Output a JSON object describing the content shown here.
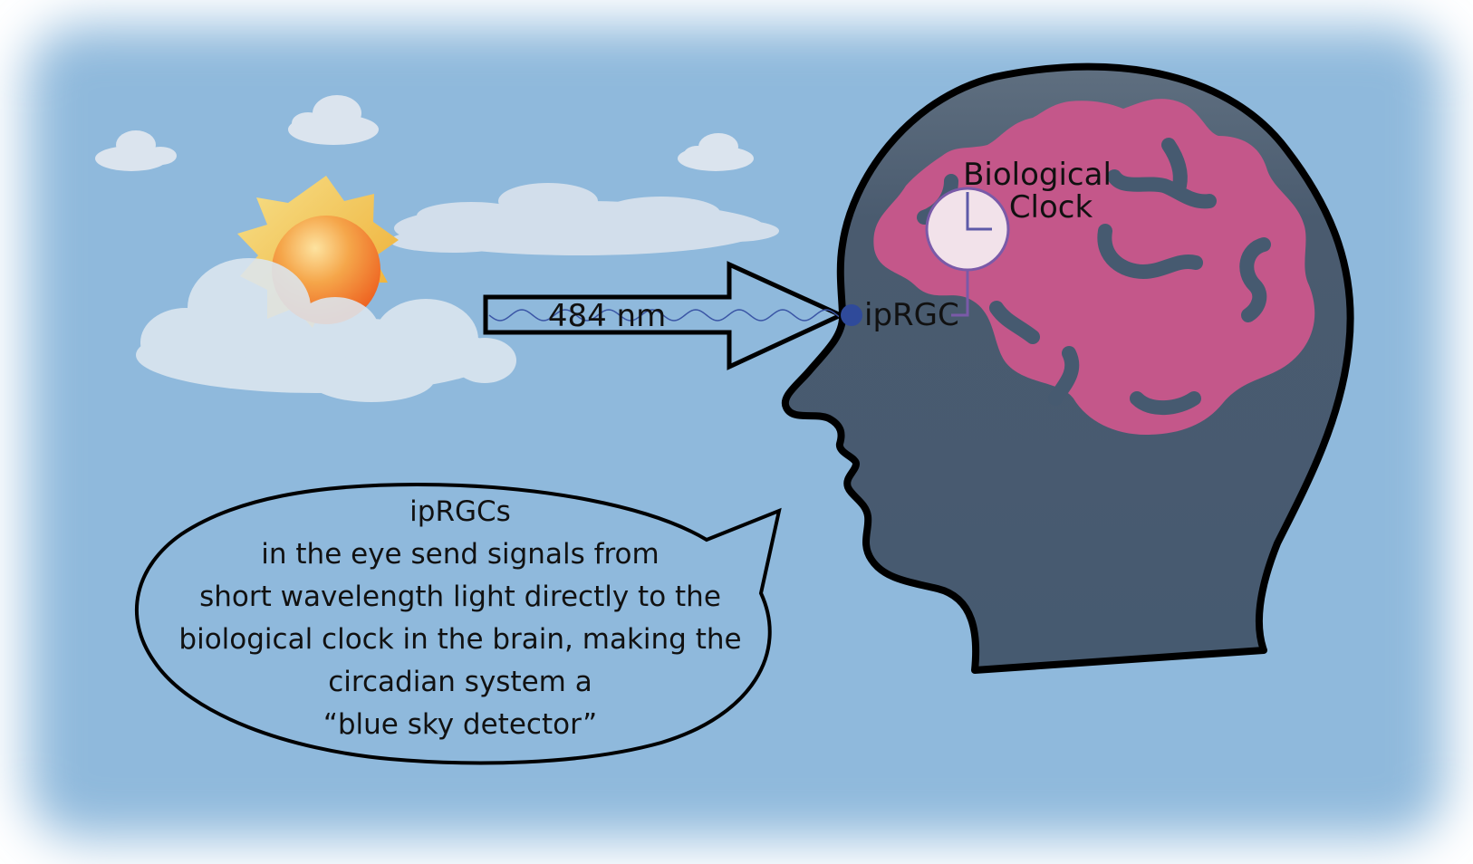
{
  "wavelength_label": "484 nm",
  "receptor_label": "ipRGC",
  "clock_label": {
    "line1": "Biological",
    "line2": "Clock"
  },
  "bubble": {
    "lines": [
      "ipRGCs",
      "in the eye send signals from",
      "short wavelength light directly to the",
      "biological clock in the brain, making the",
      "circadian system a",
      "“blue sky detector”"
    ]
  },
  "colors": {
    "sky": "#8fb9dc",
    "head": "#465a70",
    "brain": "#c4578a",
    "sun": "#f08a2a",
    "cloud": "#dbe6ef",
    "eye_dot": "#2f4a9a",
    "clock_face": "#f2e2ea",
    "clock_hands": "#7a5aa8",
    "wave": "#3a55a5"
  }
}
